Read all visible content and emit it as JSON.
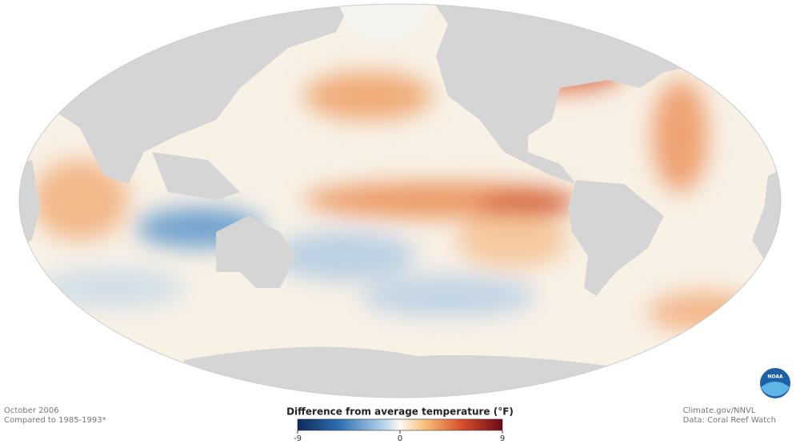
{
  "caption": {
    "date": "October 2006",
    "baseline": "Compared to 1985-1993*"
  },
  "credits": {
    "source": "Climate.gov/NNVL",
    "data": "Data: Coral Reef Watch"
  },
  "legend": {
    "title": "Difference from average temperature (°F)",
    "ticks": [
      -9,
      0,
      9
    ]
  },
  "logo": {
    "label": "NOAA"
  }
}
